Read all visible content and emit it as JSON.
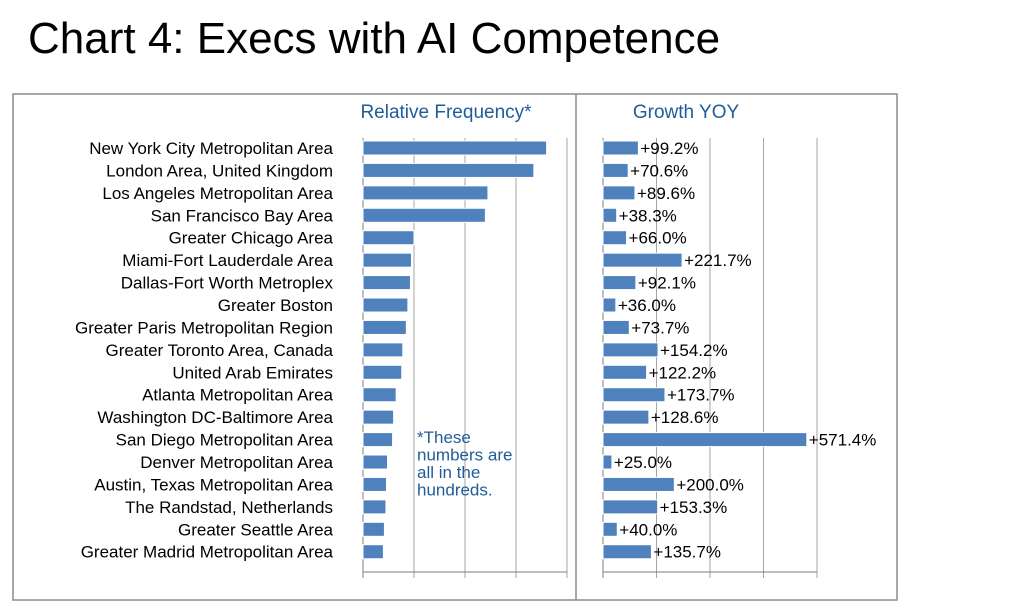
{
  "title": "Chart 4: Execs with AI Competence",
  "chart_data": [
    {
      "type": "bar",
      "orientation": "horizontal",
      "title": "Relative Frequency*",
      "note": "*These numbers are all in the hundreds.",
      "categories": [
        "New York City Metropolitan Area",
        "London Area, United Kingdom",
        "Los Angeles Metropolitan Area",
        "San Francisco Bay Area",
        "Greater Chicago Area",
        "Miami-Fort Lauderdale Area",
        "Dallas-Fort Worth Metroplex",
        "Greater Boston",
        "Greater Paris Metropolitan Region",
        "Greater Toronto Area, Canada",
        "United Arab Emirates",
        "Atlanta Metropolitan Area",
        "Washington DC-Baltimore Area",
        "San Diego Metropolitan Area",
        "Denver Metropolitan Area",
        "Austin, Texas Metropolitan Area",
        "The Randstad, Netherlands",
        "Greater Seattle Area",
        "Greater Madrid Metropolitan Area"
      ],
      "values": [
        3.6,
        3.35,
        2.45,
        2.4,
        1.0,
        0.95,
        0.93,
        0.88,
        0.85,
        0.78,
        0.76,
        0.65,
        0.6,
        0.58,
        0.48,
        0.46,
        0.45,
        0.42,
        0.4
      ],
      "xlim": [
        0,
        4
      ],
      "grid": true,
      "bar_color": "#4f81bd"
    },
    {
      "type": "bar",
      "orientation": "horizontal",
      "title": "Growth YOY",
      "categories": [
        "New York City Metropolitan Area",
        "London Area, United Kingdom",
        "Los Angeles Metropolitan Area",
        "San Francisco Bay Area",
        "Greater Chicago Area",
        "Miami-Fort Lauderdale Area",
        "Dallas-Fort Worth Metroplex",
        "Greater Boston",
        "Greater Paris Metropolitan Region",
        "Greater Toronto Area, Canada",
        "United Arab Emirates",
        "Atlanta Metropolitan Area",
        "Washington DC-Baltimore Area",
        "San Diego Metropolitan Area",
        "Denver Metropolitan Area",
        "Austin, Texas Metropolitan Area",
        "The Randstad, Netherlands",
        "Greater Seattle Area",
        "Greater Madrid Metropolitan Area"
      ],
      "values": [
        99.2,
        70.6,
        89.6,
        38.3,
        66.0,
        221.7,
        92.1,
        36.0,
        73.7,
        154.2,
        122.2,
        173.7,
        128.6,
        571.4,
        25.0,
        200.0,
        153.3,
        40.0,
        135.7
      ],
      "data_labels": [
        "+99.2%",
        "+70.6%",
        "+89.6%",
        "+38.3%",
        "+66.0%",
        "+221.7%",
        "+92.1%",
        "+36.0%",
        "+73.7%",
        "+154.2%",
        "+122.2%",
        "+173.7%",
        "+128.6%",
        "+571.4%",
        "+25.0%",
        "+200.0%",
        "+153.3%",
        "+40.0%",
        "+135.7%"
      ],
      "xlim": [
        0,
        600
      ],
      "grid": true,
      "bar_color": "#4f81bd"
    }
  ]
}
